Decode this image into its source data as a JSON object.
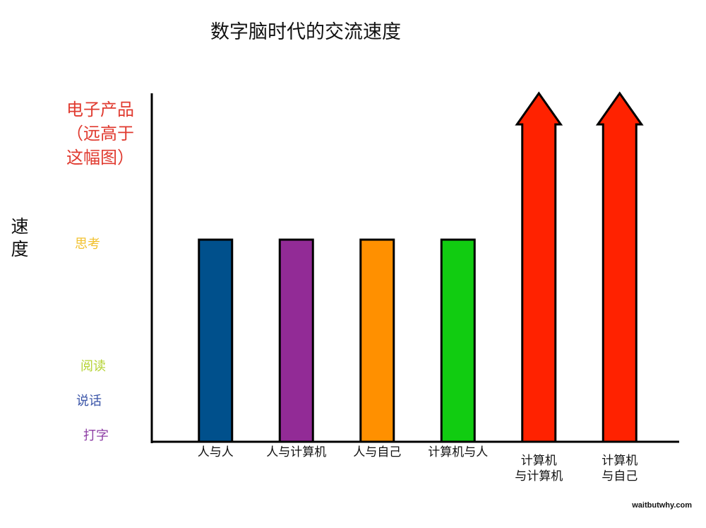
{
  "chart_data": {
    "type": "bar",
    "title": "数字脑时代的交流速度",
    "ylabel": "速度",
    "xlabel": "",
    "ylim": [
      0,
      100
    ],
    "y_top_note": "电子产品\n（远高于\n这幅图）",
    "y_levels": [
      {
        "label": "思考",
        "value": 58,
        "color": "#F2C12E"
      },
      {
        "label": "阅读",
        "value": 23,
        "color": "#B5D334"
      },
      {
        "label": "说话",
        "value": 13,
        "color": "#3B55A8"
      },
      {
        "label": "打字",
        "value": 3,
        "color": "#8E3FA5"
      }
    ],
    "categories": [
      "人与人",
      "人与计算机",
      "人与自己",
      "计算机与人",
      "计算机\n与计算机",
      "计算机\n与自己"
    ],
    "values": [
      58,
      58,
      58,
      58,
      100,
      100
    ],
    "colors": [
      "#00508C",
      "#922B96",
      "#FF9000",
      "#11CC11",
      "#FF2200",
      "#FF2200"
    ],
    "off_scale": [
      false,
      false,
      false,
      false,
      true,
      true
    ],
    "grid": false,
    "legend": "none"
  },
  "y_top_note_color": "#E03A2F",
  "watermark": "waitbutwhy.com"
}
